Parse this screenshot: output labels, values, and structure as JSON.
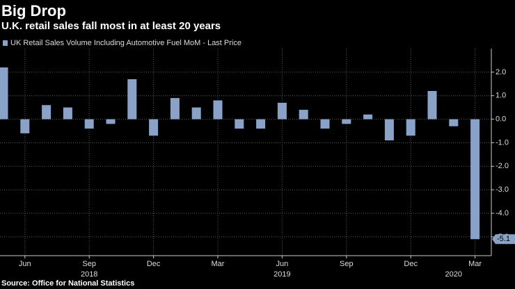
{
  "chart_data": {
    "type": "bar",
    "title": "Big Drop",
    "subtitle": "U.K. retail sales fall most in at least 20 years",
    "source": "Source: Office for National Statistics",
    "categories": [
      null,
      "Jun",
      null,
      null,
      "Sep",
      null,
      null,
      "Dec",
      null,
      null,
      "Mar",
      null,
      null,
      "Jun",
      null,
      null,
      "Sep",
      null,
      null,
      "Dec",
      null,
      null,
      "Mar"
    ],
    "year_labels": [
      "2018",
      "2019",
      "2020"
    ],
    "series": [
      {
        "name": "UK Retail Sales Volume Including Automotive Fuel MoM - Last Price",
        "color": "#8aa2c8",
        "values": [
          2.2,
          -0.6,
          0.6,
          0.5,
          -0.4,
          -0.2,
          1.7,
          -0.7,
          0.9,
          0.5,
          0.8,
          -0.4,
          -0.4,
          0.7,
          0.4,
          -0.4,
          -0.2,
          0.2,
          -0.9,
          -0.7,
          1.2,
          -0.3,
          -5.1
        ]
      }
    ],
    "ylim": [
      -5.8,
      3.0
    ],
    "yticks": [
      {
        "value": 2,
        "label": "2.0"
      },
      {
        "value": 1,
        "label": "1.0"
      },
      {
        "value": 0,
        "label": "0.0"
      },
      {
        "value": -1,
        "label": "-1.0"
      },
      {
        "value": -2,
        "label": "-2.0"
      },
      {
        "value": -3,
        "label": "-3.0"
      },
      {
        "value": -4,
        "label": "-4.0"
      },
      {
        "value": -5,
        "label": "-5.0"
      }
    ],
    "grid": true
  }
}
